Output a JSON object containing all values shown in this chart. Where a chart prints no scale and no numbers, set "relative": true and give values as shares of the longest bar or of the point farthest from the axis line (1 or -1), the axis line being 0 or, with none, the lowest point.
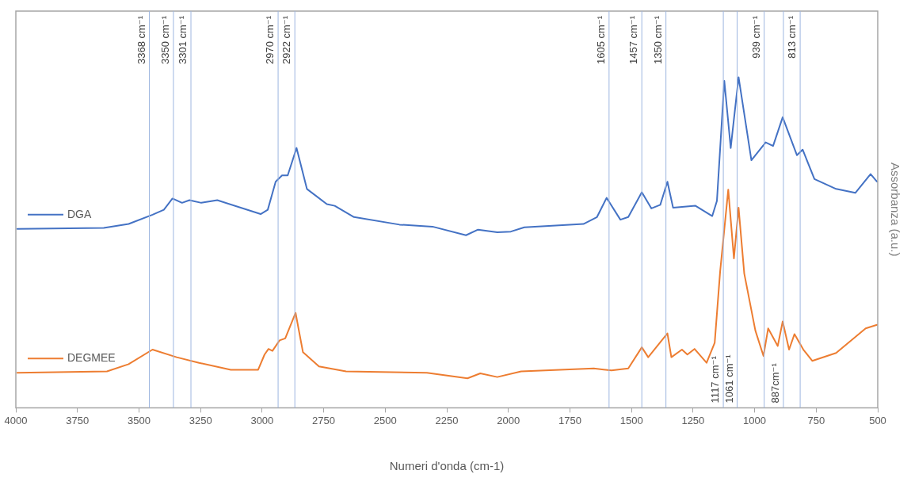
{
  "chart_data": {
    "type": "line",
    "xlabel": "Numeri d'onda (cm-1)",
    "ylabel": "Assorbanza (a.u.)",
    "relative": true,
    "xlim": [
      4000,
      500
    ],
    "xticks": [
      4000,
      3750,
      3500,
      3250,
      3000,
      2750,
      2500,
      2250,
      2000,
      1750,
      1500,
      1250,
      1000,
      750,
      500
    ],
    "legend": "left",
    "grid": false,
    "marker": "none",
    "line_style": "solid",
    "series": [
      {
        "name": "DGA",
        "color": "#4472c4",
        "x": [
          3994,
          3643,
          3542,
          3445,
          3399,
          3364,
          3325,
          3295,
          3247,
          3182,
          3006,
          2977,
          2945,
          2919,
          2896,
          2860,
          2818,
          2737,
          2705,
          2627,
          2442,
          2308,
          2172,
          2123,
          2045,
          1990,
          1935,
          1695,
          1640,
          1601,
          1545,
          1513,
          1458,
          1419,
          1383,
          1354,
          1331,
          1240,
          1172,
          1153,
          1123,
          1097,
          1065,
          1013,
          955,
          925,
          886,
          828,
          805,
          757,
          669,
          591,
          529,
          503
        ],
        "values": [
          0.541,
          0.544,
          0.556,
          0.584,
          0.599,
          0.633,
          0.62,
          0.628,
          0.62,
          0.628,
          0.586,
          0.599,
          0.684,
          0.703,
          0.703,
          0.786,
          0.662,
          0.616,
          0.611,
          0.577,
          0.554,
          0.548,
          0.522,
          0.539,
          0.531,
          0.533,
          0.546,
          0.556,
          0.577,
          0.635,
          0.569,
          0.577,
          0.652,
          0.603,
          0.614,
          0.684,
          0.605,
          0.611,
          0.58,
          0.626,
          0.989,
          0.786,
          1.0,
          0.749,
          0.803,
          0.792,
          0.879,
          0.764,
          0.781,
          0.692,
          0.662,
          0.65,
          0.707,
          0.684
        ]
      },
      {
        "name": "DEGMEE",
        "color": "#ed7d31",
        "x": [
          3994,
          3630,
          3542,
          3445,
          3347,
          3256,
          3127,
          3016,
          2990,
          2974,
          2958,
          2929,
          2906,
          2864,
          2834,
          2769,
          2659,
          2331,
          2166,
          2114,
          2045,
          1948,
          1653,
          1581,
          1513,
          1458,
          1432,
          1377,
          1354,
          1338,
          1295,
          1273,
          1244,
          1195,
          1162,
          1140,
          1107,
          1084,
          1065,
          1042,
          997,
          964,
          945,
          906,
          886,
          860,
          838,
          802,
          766,
          669,
          549,
          503
        ],
        "values": [
          0.106,
          0.11,
          0.132,
          0.176,
          0.153,
          0.136,
          0.115,
          0.115,
          0.161,
          0.178,
          0.172,
          0.204,
          0.21,
          0.287,
          0.168,
          0.125,
          0.11,
          0.106,
          0.089,
          0.104,
          0.093,
          0.11,
          0.119,
          0.113,
          0.119,
          0.183,
          0.153,
          0.204,
          0.225,
          0.153,
          0.176,
          0.161,
          0.178,
          0.136,
          0.197,
          0.412,
          0.66,
          0.452,
          0.605,
          0.406,
          0.234,
          0.157,
          0.24,
          0.187,
          0.261,
          0.176,
          0.223,
          0.176,
          0.142,
          0.166,
          0.24,
          0.251
        ]
      }
    ],
    "ref_lines": [
      {
        "axis": "x",
        "value": 3458,
        "label": "3368 cm⁻¹",
        "color": "#9db6e0"
      },
      {
        "axis": "x",
        "value": 3360,
        "label": "3350 cm⁻¹",
        "color": "#9db6e0"
      },
      {
        "axis": "x",
        "value": 3289,
        "label": "3301 cm⁻¹",
        "color": "#9db6e0"
      },
      {
        "axis": "x",
        "value": 2935,
        "label": "2970 cm⁻¹",
        "color": "#9db6e0"
      },
      {
        "axis": "x",
        "value": 2867,
        "label": "2922 cm⁻¹",
        "color": "#9db6e0"
      },
      {
        "axis": "x",
        "value": 1591,
        "label": "1605 cm⁻¹",
        "color": "#9db6e0"
      },
      {
        "axis": "x",
        "value": 1458,
        "label": "1457 cm⁻¹",
        "color": "#9db6e0"
      },
      {
        "axis": "x",
        "value": 1360,
        "label": "1350 cm⁻¹",
        "color": "#9db6e0"
      },
      {
        "axis": "x",
        "value": 1127,
        "label": "1117 cm⁻¹",
        "color": "#9db6e0"
      },
      {
        "axis": "x",
        "value": 1071,
        "label": "1061 cm⁻¹",
        "color": "#9db6e0"
      },
      {
        "axis": "x",
        "value": 961,
        "label": "939 cm⁻¹",
        "color": "#9db6e0"
      },
      {
        "axis": "x",
        "value": 883,
        "label": "887cm⁻¹",
        "color": "#9db6e0"
      },
      {
        "axis": "x",
        "value": 815,
        "label": "813 cm⁻¹",
        "color": "#9db6e0"
      }
    ]
  }
}
